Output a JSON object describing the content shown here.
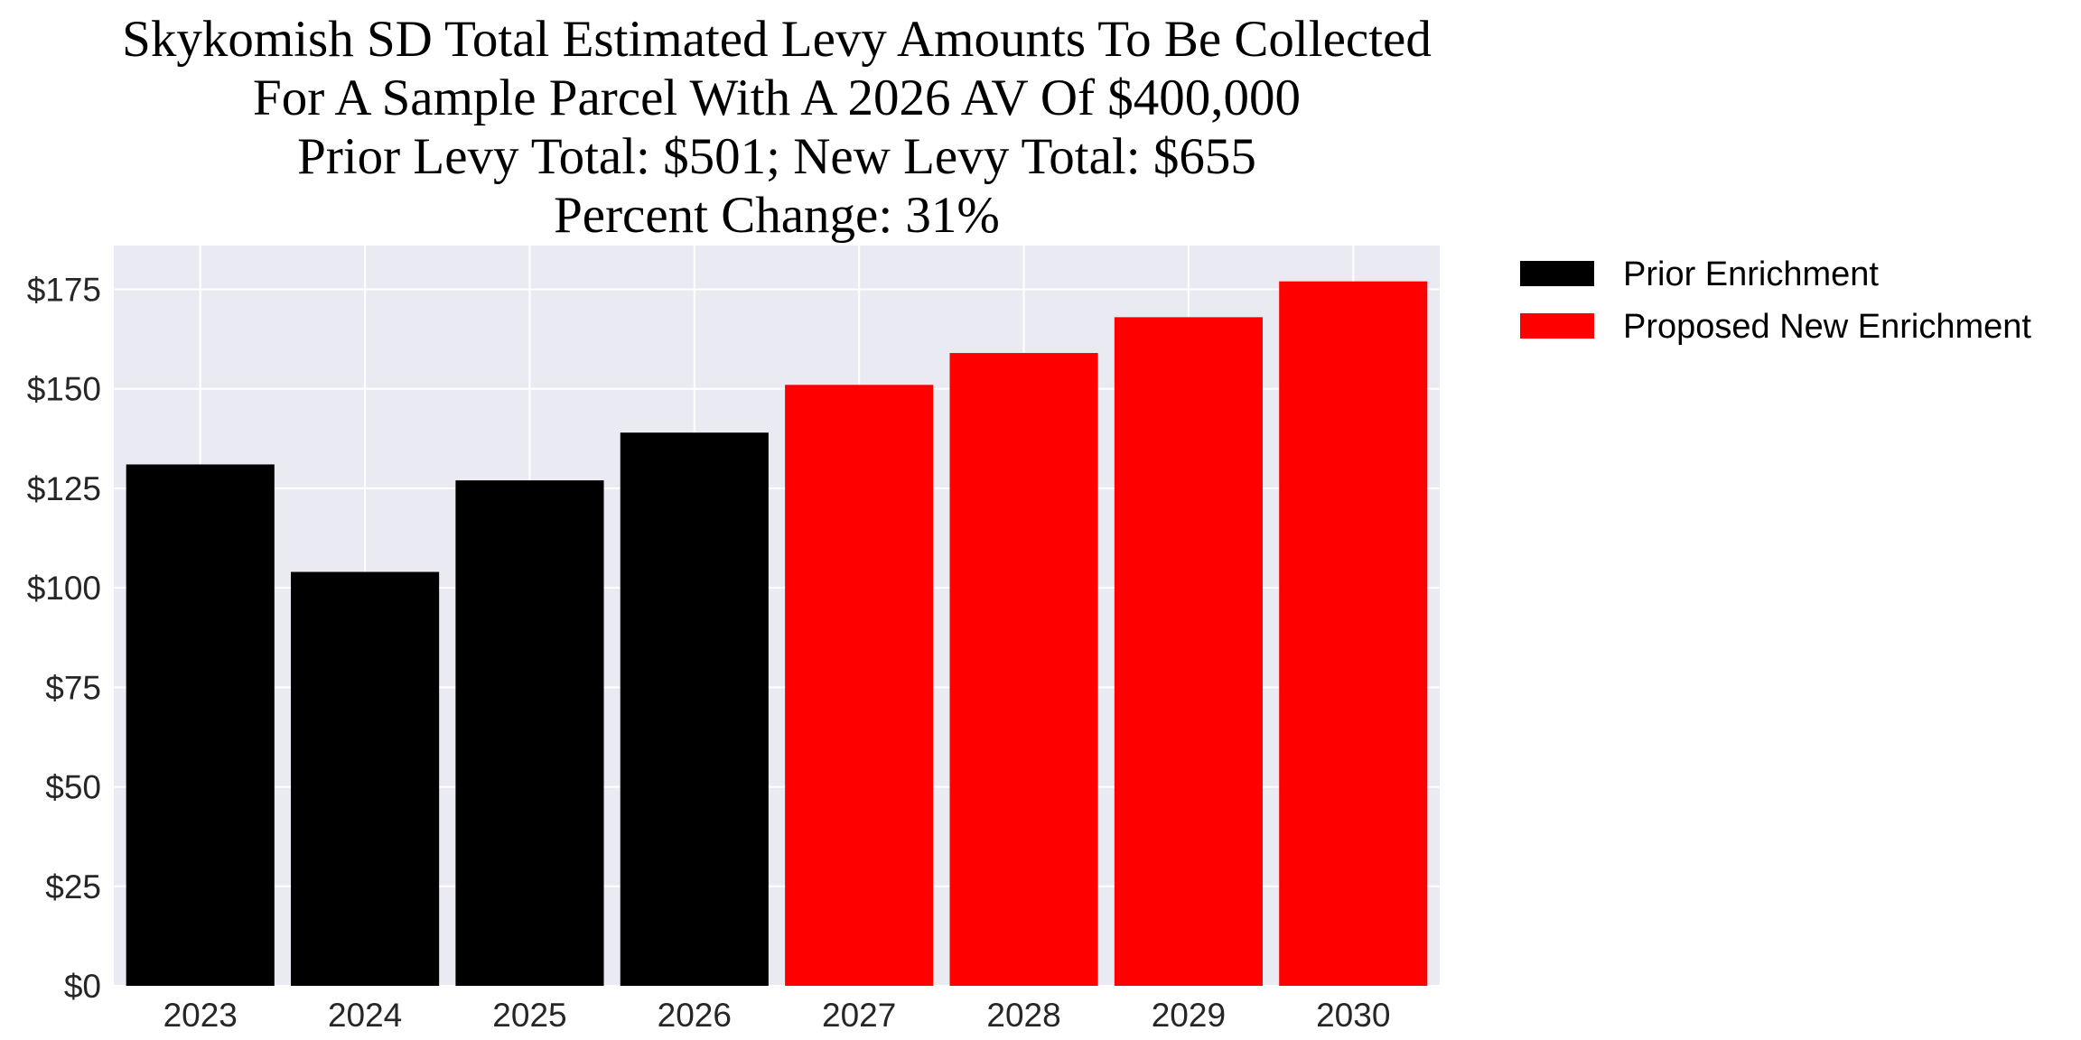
{
  "chart_data": {
    "type": "bar",
    "title_lines": [
      "Skykomish SD Total Estimated Levy Amounts To Be Collected",
      "For A Sample Parcel With A 2026 AV Of $400,000",
      "Prior Levy Total:  $501; New Levy Total: $655",
      "Percent Change: 31%"
    ],
    "categories": [
      "2023",
      "2024",
      "2025",
      "2026",
      "2027",
      "2028",
      "2029",
      "2030"
    ],
    "values": [
      131,
      104,
      127,
      139,
      151,
      159,
      168,
      177
    ],
    "bar_series": [
      "Prior Enrichment",
      "Prior Enrichment",
      "Prior Enrichment",
      "Prior Enrichment",
      "Proposed New Enrichment",
      "Proposed New Enrichment",
      "Proposed New Enrichment",
      "Proposed New Enrichment"
    ],
    "series": [
      {
        "name": "Prior Enrichment",
        "color": "#000000"
      },
      {
        "name": "Proposed New Enrichment",
        "color": "#ff0000"
      }
    ],
    "ylim": [
      0,
      186
    ],
    "y_ticks": [
      0,
      25,
      50,
      75,
      100,
      125,
      150,
      175
    ],
    "y_tick_labels": [
      "$0",
      "$25",
      "$50",
      "$75",
      "$100",
      "$125",
      "$150",
      "$175"
    ],
    "xlabel": "",
    "ylabel": "",
    "grid": true,
    "legend_position": "outside-top-right",
    "plot_background": "#eaeaf2",
    "grid_color": "#ffffff"
  }
}
